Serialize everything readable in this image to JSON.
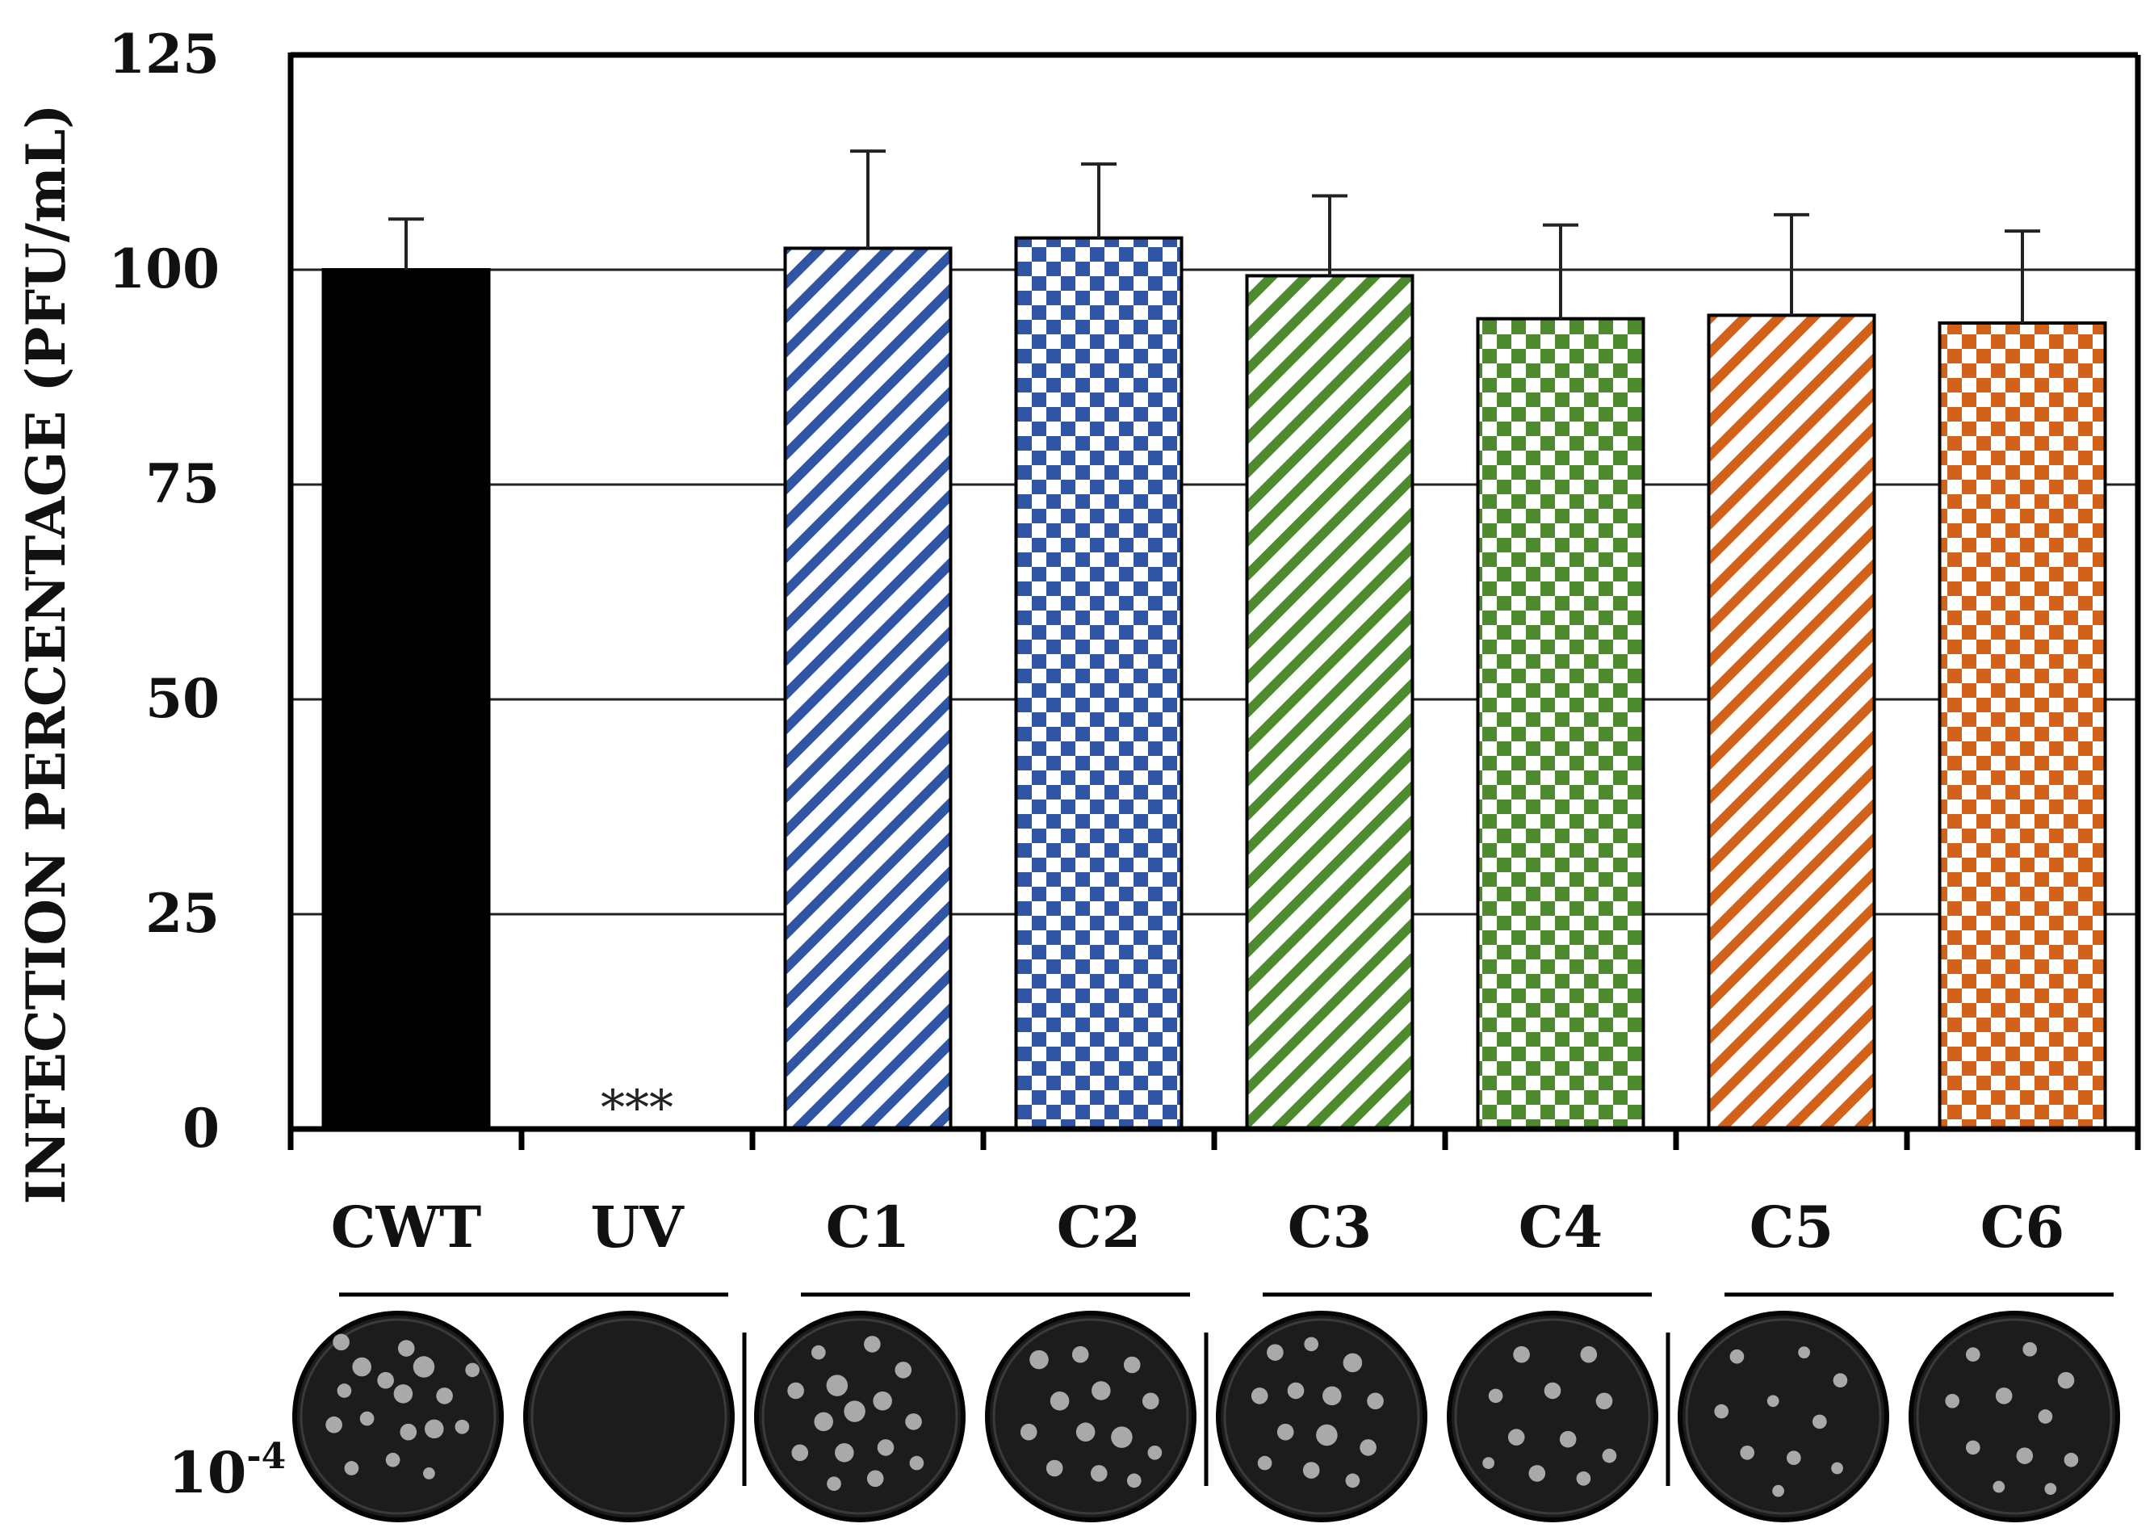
{
  "chart_data": {
    "type": "bar",
    "ylabel": "INFECTION PERCENTAGE (PFU/mL)",
    "xlabel": "",
    "ylim": [
      0,
      125
    ],
    "yticks": [
      0,
      25,
      50,
      75,
      100,
      125
    ],
    "grid": true,
    "categories": [
      "CWT",
      "UV",
      "C1",
      "C2",
      "C3",
      "C4",
      "C5",
      "C6"
    ],
    "values": [
      100,
      0,
      102.5,
      103.7,
      99.3,
      94.3,
      94.7,
      93.8
    ],
    "errors": [
      5.9,
      0,
      11.3,
      8.6,
      9.3,
      10.9,
      11.7,
      10.7
    ],
    "bar_styles": [
      {
        "color": "#000000",
        "pattern": "solid"
      },
      {
        "color": "#000000",
        "pattern": "none"
      },
      {
        "color": "#2f55a4",
        "pattern": "diagonal"
      },
      {
        "color": "#2f55a4",
        "pattern": "checker"
      },
      {
        "color": "#4e8a2e",
        "pattern": "diagonal"
      },
      {
        "color": "#4e8a2e",
        "pattern": "checker"
      },
      {
        "color": "#d2621a",
        "pattern": "diagonal"
      },
      {
        "color": "#d2621a",
        "pattern": "checker"
      }
    ],
    "annotations": [
      {
        "category": "UV",
        "text": "***"
      }
    ],
    "plaque_dilution_label": {
      "base": "10",
      "exponent": "-4"
    }
  },
  "plaques": [
    {
      "category": "CWT",
      "spots": [
        [
          -0.55,
          -0.72,
          0.07
        ],
        [
          -0.35,
          -0.48,
          0.08
        ],
        [
          0.08,
          -0.66,
          0.07
        ],
        [
          0.25,
          -0.48,
          0.09
        ],
        [
          -0.12,
          -0.35,
          0.07
        ],
        [
          0.05,
          -0.22,
          0.08
        ],
        [
          0.45,
          -0.2,
          0.07
        ],
        [
          -0.52,
          -0.25,
          0.06
        ],
        [
          -0.62,
          0.08,
          0.07
        ],
        [
          -0.3,
          0.02,
          0.06
        ],
        [
          0.1,
          0.15,
          0.07
        ],
        [
          0.35,
          0.12,
          0.08
        ],
        [
          0.62,
          0.1,
          0.06
        ],
        [
          -0.05,
          0.42,
          0.06
        ],
        [
          -0.45,
          0.5,
          0.06
        ],
        [
          0.3,
          0.55,
          0.05
        ],
        [
          0.72,
          -0.45,
          0.06
        ]
      ]
    },
    {
      "category": "UV",
      "spots": []
    },
    {
      "category": "C1",
      "spots": [
        [
          -0.4,
          -0.62,
          0.06
        ],
        [
          0.12,
          -0.7,
          0.07
        ],
        [
          0.42,
          -0.45,
          0.07
        ],
        [
          -0.62,
          -0.25,
          0.07
        ],
        [
          -0.22,
          -0.3,
          0.09
        ],
        [
          -0.05,
          -0.05,
          0.09
        ],
        [
          -0.35,
          0.05,
          0.08
        ],
        [
          0.22,
          -0.15,
          0.08
        ],
        [
          0.52,
          0.05,
          0.07
        ],
        [
          -0.58,
          0.35,
          0.07
        ],
        [
          -0.15,
          0.35,
          0.08
        ],
        [
          0.25,
          0.3,
          0.07
        ],
        [
          0.55,
          0.45,
          0.06
        ],
        [
          -0.25,
          0.65,
          0.06
        ],
        [
          0.15,
          0.6,
          0.07
        ]
      ]
    },
    {
      "category": "C2",
      "spots": [
        [
          -0.5,
          -0.55,
          0.08
        ],
        [
          -0.1,
          -0.6,
          0.07
        ],
        [
          0.4,
          -0.5,
          0.07
        ],
        [
          -0.3,
          -0.15,
          0.08
        ],
        [
          0.1,
          -0.25,
          0.08
        ],
        [
          0.58,
          -0.15,
          0.07
        ],
        [
          -0.6,
          0.15,
          0.07
        ],
        [
          -0.05,
          0.15,
          0.08
        ],
        [
          0.3,
          0.2,
          0.09
        ],
        [
          0.62,
          0.35,
          0.06
        ],
        [
          -0.35,
          0.5,
          0.07
        ],
        [
          0.08,
          0.55,
          0.07
        ],
        [
          0.42,
          0.62,
          0.06
        ]
      ]
    },
    {
      "category": "C3",
      "spots": [
        [
          -0.45,
          -0.62,
          0.07
        ],
        [
          -0.1,
          -0.7,
          0.06
        ],
        [
          0.3,
          -0.52,
          0.08
        ],
        [
          -0.6,
          -0.2,
          0.07
        ],
        [
          -0.25,
          -0.25,
          0.07
        ],
        [
          0.1,
          -0.2,
          0.08
        ],
        [
          0.52,
          -0.15,
          0.07
        ],
        [
          -0.35,
          0.15,
          0.07
        ],
        [
          0.05,
          0.18,
          0.09
        ],
        [
          0.45,
          0.3,
          0.07
        ],
        [
          -0.55,
          0.45,
          0.06
        ],
        [
          -0.1,
          0.52,
          0.07
        ],
        [
          0.3,
          0.62,
          0.06
        ]
      ]
    },
    {
      "category": "C4",
      "spots": [
        [
          -0.3,
          -0.6,
          0.07
        ],
        [
          0.35,
          -0.6,
          0.07
        ],
        [
          -0.55,
          -0.2,
          0.06
        ],
        [
          0.0,
          -0.25,
          0.07
        ],
        [
          0.5,
          -0.15,
          0.07
        ],
        [
          -0.35,
          0.2,
          0.07
        ],
        [
          0.15,
          0.22,
          0.07
        ],
        [
          0.55,
          0.38,
          0.06
        ],
        [
          -0.15,
          0.55,
          0.07
        ],
        [
          0.3,
          0.6,
          0.06
        ],
        [
          -0.62,
          0.45,
          0.05
        ]
      ]
    },
    {
      "category": "C5",
      "spots": [
        [
          -0.45,
          -0.58,
          0.06
        ],
        [
          0.2,
          -0.62,
          0.05
        ],
        [
          0.55,
          -0.35,
          0.06
        ],
        [
          -0.6,
          -0.05,
          0.06
        ],
        [
          -0.1,
          -0.15,
          0.05
        ],
        [
          0.35,
          0.05,
          0.06
        ],
        [
          -0.35,
          0.35,
          0.06
        ],
        [
          0.1,
          0.4,
          0.06
        ],
        [
          0.52,
          0.5,
          0.05
        ],
        [
          -0.05,
          0.72,
          0.05
        ]
      ]
    },
    {
      "category": "C6",
      "spots": [
        [
          -0.4,
          -0.6,
          0.06
        ],
        [
          0.15,
          -0.65,
          0.06
        ],
        [
          0.5,
          -0.35,
          0.07
        ],
        [
          -0.6,
          -0.15,
          0.06
        ],
        [
          -0.1,
          -0.2,
          0.07
        ],
        [
          0.3,
          0.0,
          0.06
        ],
        [
          -0.4,
          0.3,
          0.06
        ],
        [
          0.1,
          0.38,
          0.07
        ],
        [
          0.55,
          0.42,
          0.06
        ],
        [
          -0.15,
          0.68,
          0.05
        ],
        [
          0.35,
          0.7,
          0.05
        ]
      ]
    }
  ]
}
